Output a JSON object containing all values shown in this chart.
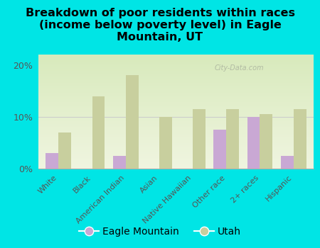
{
  "title": "Breakdown of poor residents within races\n(income below poverty level) in Eagle\nMountain, UT",
  "categories": [
    "White",
    "Black",
    "American Indian",
    "Asian",
    "Native Hawaiian",
    "Other race",
    "2+ races",
    "Hispanic"
  ],
  "eagle_mountain": [
    3.0,
    0,
    2.5,
    0,
    0,
    7.5,
    10.0,
    2.5
  ],
  "utah": [
    7.0,
    14.0,
    18.0,
    10.0,
    11.5,
    11.5,
    10.5,
    11.5
  ],
  "eagle_mountain_color": "#c9a8d4",
  "utah_color": "#c8cf9e",
  "background_color": "#00e5e5",
  "plot_bg_top": "#d8eabc",
  "plot_bg_bottom": "#f0f5e0",
  "ylim": [
    0,
    22
  ],
  "yticks": [
    0,
    10,
    20
  ],
  "ytick_labels": [
    "0%",
    "10%",
    "20%"
  ],
  "watermark": "City-Data.com",
  "bar_width": 0.38,
  "title_fontsize": 11.5,
  "legend_fontsize": 10,
  "tick_label_fontsize": 8,
  "ytick_fontsize": 9
}
